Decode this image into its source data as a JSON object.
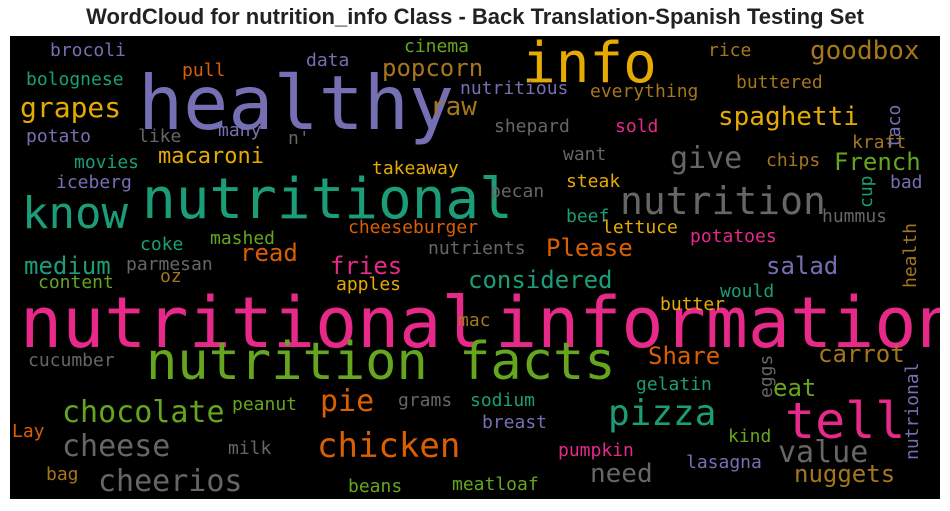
{
  "title": "WordCloud for nutrition_info Class - Back Translation-Spanish Testing Set",
  "colors": {
    "pink": "#e7298a",
    "green": "#66a61e",
    "teal": "#1b9e77",
    "orange": "#d95f02",
    "purple": "#7570b3",
    "gold": "#e6ab02",
    "brown": "#a6761d",
    "gray": "#666666"
  },
  "words": [
    {
      "text": "nutritional",
      "color": "pink"
    },
    {
      "text": "information",
      "color": "pink"
    },
    {
      "text": "healthy",
      "color": "purple"
    },
    {
      "text": "nutritional",
      "color": "teal"
    },
    {
      "text": "nutrition facts",
      "color": "green"
    },
    {
      "text": "info",
      "color": "gold"
    },
    {
      "text": "know",
      "color": "teal"
    },
    {
      "text": "tell",
      "color": "pink"
    },
    {
      "text": "nutrition",
      "color": "gray"
    },
    {
      "text": "pizza",
      "color": "teal"
    },
    {
      "text": "chicken",
      "color": "orange"
    },
    {
      "text": "cheerios",
      "color": "gray"
    },
    {
      "text": "cheese",
      "color": "gray"
    },
    {
      "text": "chocolate",
      "color": "green"
    },
    {
      "text": "value",
      "color": "gray"
    },
    {
      "text": "grapes",
      "color": "gold"
    },
    {
      "text": "give",
      "color": "gray"
    },
    {
      "text": "spaghetti",
      "color": "gold"
    },
    {
      "text": "popcorn",
      "color": "brown"
    },
    {
      "text": "goodbox",
      "color": "brown"
    },
    {
      "text": "raw",
      "color": "brown"
    },
    {
      "text": "macaroni",
      "color": "gold"
    },
    {
      "text": "French",
      "color": "green"
    },
    {
      "text": "medium",
      "color": "teal"
    },
    {
      "text": "read",
      "color": "orange"
    },
    {
      "text": "fries",
      "color": "pink"
    },
    {
      "text": "considered",
      "color": "teal"
    },
    {
      "text": "salad",
      "color": "purple"
    },
    {
      "text": "Please",
      "color": "orange"
    },
    {
      "text": "carrot",
      "color": "brown"
    },
    {
      "text": "Share",
      "color": "orange"
    },
    {
      "text": "pie",
      "color": "orange"
    },
    {
      "text": "eat",
      "color": "green"
    },
    {
      "text": "nuggets",
      "color": "brown"
    },
    {
      "text": "need",
      "color": "gray"
    },
    {
      "text": "brocoli",
      "color": "purple"
    },
    {
      "text": "pull",
      "color": "orange"
    },
    {
      "text": "data",
      "color": "purple"
    },
    {
      "text": "cinema",
      "color": "green"
    },
    {
      "text": "rice",
      "color": "brown"
    },
    {
      "text": "bolognese",
      "color": "teal"
    },
    {
      "text": "nutritious",
      "color": "purple"
    },
    {
      "text": "everything",
      "color": "brown"
    },
    {
      "text": "buttered",
      "color": "brown"
    },
    {
      "text": "potato",
      "color": "purple"
    },
    {
      "text": "like",
      "color": "gray"
    },
    {
      "text": "many",
      "color": "purple"
    },
    {
      "text": "n'",
      "color": "gray"
    },
    {
      "text": "shepard",
      "color": "gray"
    },
    {
      "text": "sold",
      "color": "pink"
    },
    {
      "text": "kraft",
      "color": "brown"
    },
    {
      "text": "taco",
      "color": "purple"
    },
    {
      "text": "movies",
      "color": "teal"
    },
    {
      "text": "want",
      "color": "gray"
    },
    {
      "text": "chips",
      "color": "brown"
    },
    {
      "text": "iceberg",
      "color": "purple"
    },
    {
      "text": "takeaway",
      "color": "gold"
    },
    {
      "text": "steak",
      "color": "gold"
    },
    {
      "text": "cup",
      "color": "teal"
    },
    {
      "text": "bad",
      "color": "purple"
    },
    {
      "text": "pecan",
      "color": "gray"
    },
    {
      "text": "beef",
      "color": "teal"
    },
    {
      "text": "hummus",
      "color": "gray"
    },
    {
      "text": "cheeseburger",
      "color": "orange"
    },
    {
      "text": "lettuce",
      "color": "gold"
    },
    {
      "text": "coke",
      "color": "teal"
    },
    {
      "text": "mashed",
      "color": "green"
    },
    {
      "text": "nutrients",
      "color": "gray"
    },
    {
      "text": "potatoes",
      "color": "pink"
    },
    {
      "text": "health",
      "color": "brown"
    },
    {
      "text": "parmesan",
      "color": "gray"
    },
    {
      "text": "oz",
      "color": "brown"
    },
    {
      "text": "content",
      "color": "green"
    },
    {
      "text": "apples",
      "color": "gold"
    },
    {
      "text": "butter",
      "color": "gold"
    },
    {
      "text": "would",
      "color": "teal"
    },
    {
      "text": "mac",
      "color": "brown"
    },
    {
      "text": "cucumber",
      "color": "gray"
    },
    {
      "text": "eggs",
      "color": "gray"
    },
    {
      "text": "nutrional",
      "color": "purple"
    },
    {
      "text": "gelatin",
      "color": "teal"
    },
    {
      "text": "peanut",
      "color": "green"
    },
    {
      "text": "grams",
      "color": "gray"
    },
    {
      "text": "sodium",
      "color": "teal"
    },
    {
      "text": "Lay",
      "color": "orange"
    },
    {
      "text": "milk",
      "color": "gray"
    },
    {
      "text": "breast",
      "color": "purple"
    },
    {
      "text": "kind",
      "color": "green"
    },
    {
      "text": "pumpkin",
      "color": "pink"
    },
    {
      "text": "lasagna",
      "color": "purple"
    },
    {
      "text": "bag",
      "color": "brown"
    },
    {
      "text": "beans",
      "color": "green"
    },
    {
      "text": "meatloaf",
      "color": "green"
    }
  ]
}
